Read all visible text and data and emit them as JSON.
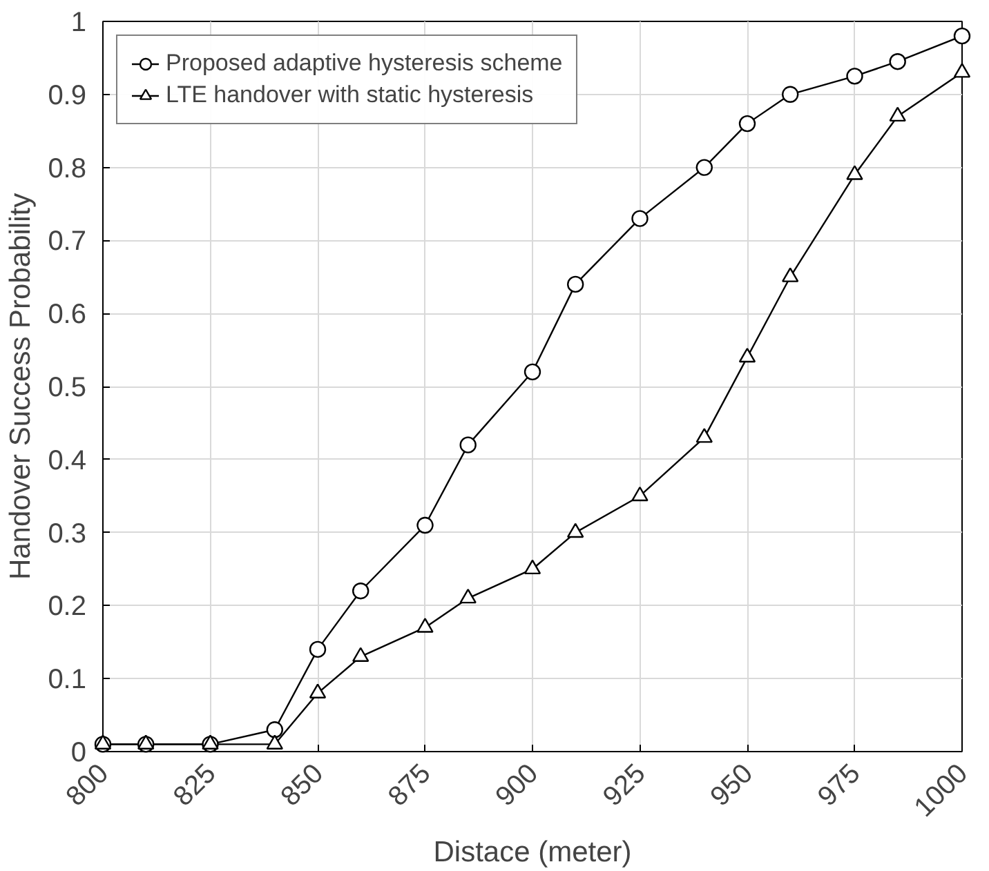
{
  "chart_data": {
    "type": "line",
    "xlabel": "Distace (meter)",
    "ylabel": "Handover Success Probability",
    "x": [
      800,
      810,
      825,
      840,
      850,
      860,
      875,
      885,
      900,
      910,
      925,
      940,
      950,
      960,
      975,
      985,
      1000
    ],
    "series": [
      {
        "name": "Proposed adaptive hysteresis scheme",
        "color": "#000000",
        "marker": "circle",
        "values": [
          0.01,
          0.01,
          0.01,
          0.03,
          0.14,
          0.22,
          0.31,
          0.42,
          0.52,
          0.64,
          0.73,
          0.8,
          0.86,
          0.9,
          0.925,
          0.945,
          0.98
        ]
      },
      {
        "name": "LTE handover with static hysteresis",
        "color": "#000000",
        "marker": "triangle",
        "values": [
          0.01,
          0.01,
          0.01,
          0.01,
          0.08,
          0.13,
          0.17,
          0.21,
          0.25,
          0.3,
          0.35,
          0.43,
          0.54,
          0.65,
          0.79,
          0.87,
          0.93
        ]
      }
    ],
    "xlim": [
      800,
      1000
    ],
    "xticks": [
      800,
      825,
      850,
      875,
      900,
      925,
      950,
      975,
      1000
    ],
    "ylim": [
      0,
      1
    ],
    "yticks": [
      0,
      0.1,
      0.2,
      0.3,
      0.4,
      0.5,
      0.6,
      0.7,
      0.8,
      0.9,
      1
    ],
    "grid": true,
    "legend": "top left",
    "line_style": "solid"
  }
}
